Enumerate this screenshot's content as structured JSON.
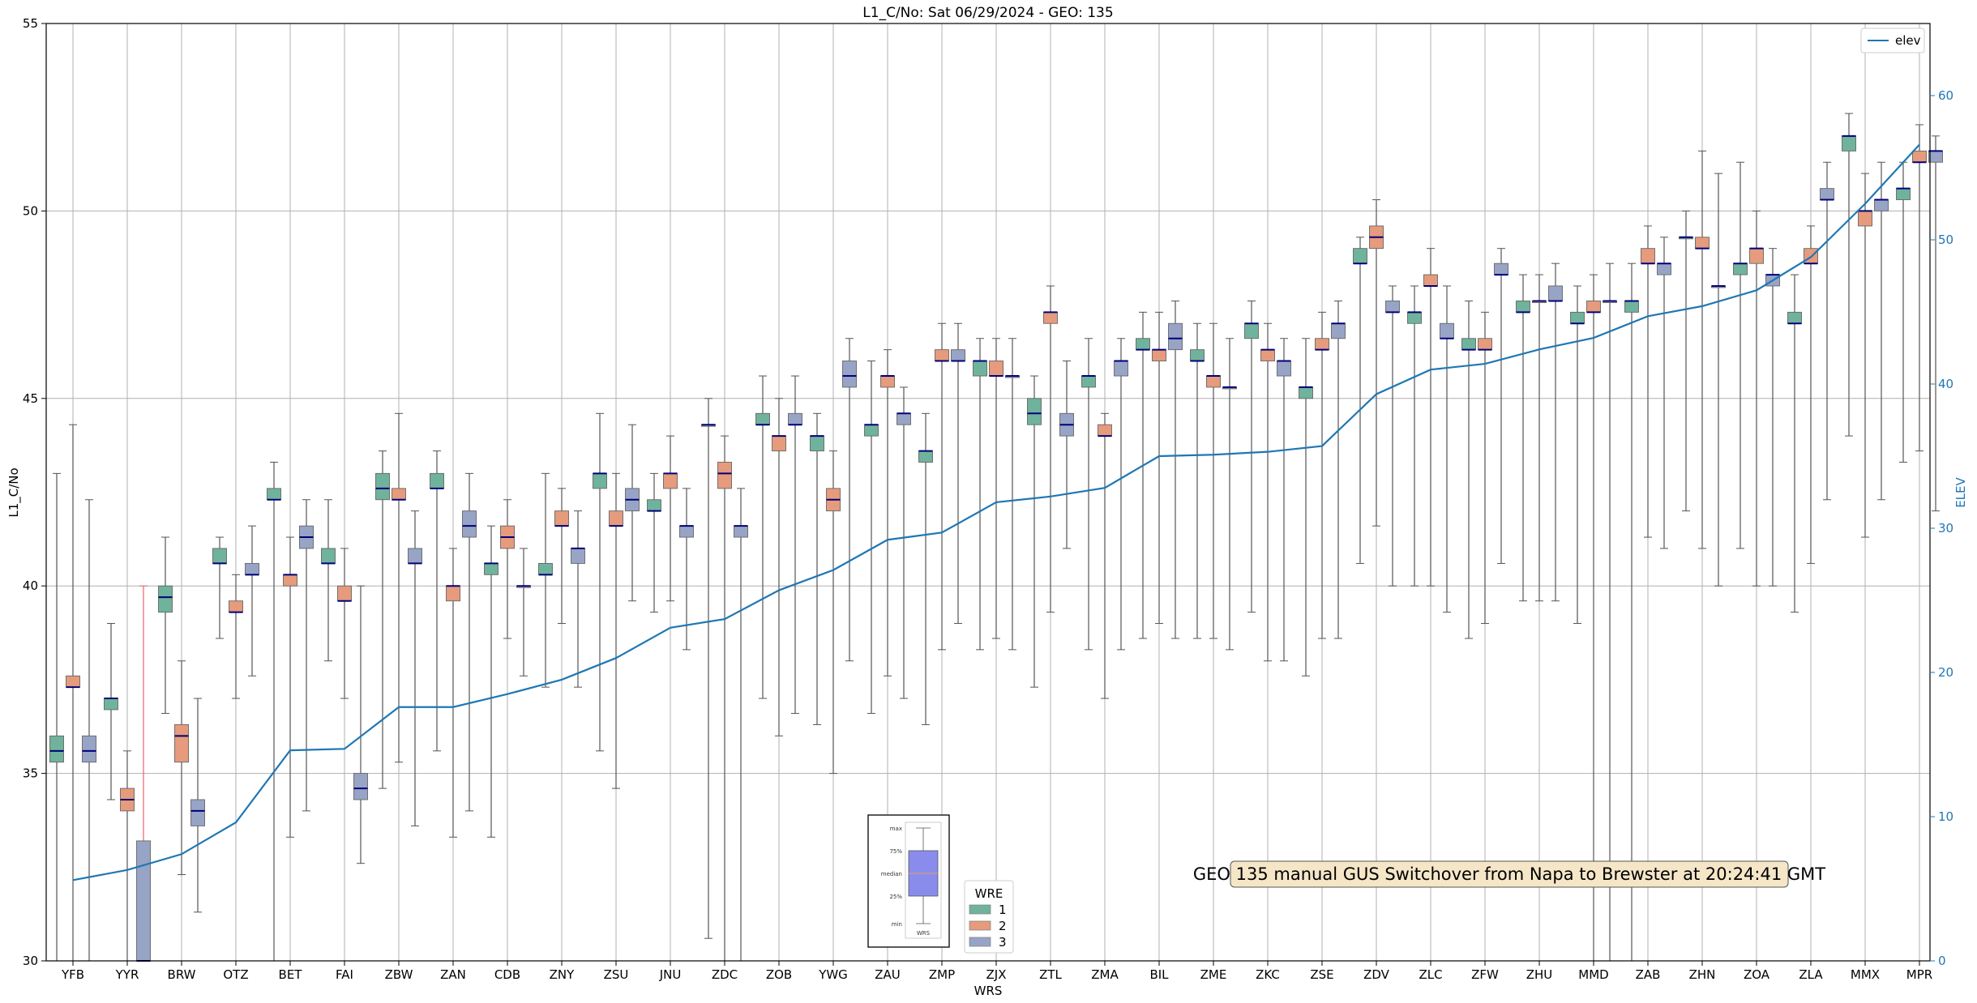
{
  "chart_data": {
    "type": "box",
    "title": "L1_C/No: Sat 06/29/2024 - GEO: 135",
    "xlabel": "WRS",
    "ylabel": "L1_C/No",
    "y2label": "ELEV",
    "ylim": [
      30,
      55
    ],
    "y2lim": [
      0,
      65
    ],
    "yticks": [
      30,
      35,
      40,
      45,
      50,
      55
    ],
    "y2ticks": [
      0,
      10,
      20,
      30,
      40,
      50,
      60
    ],
    "grid": true,
    "categories": [
      "YFB",
      "YYR",
      "BRW",
      "OTZ",
      "BET",
      "FAI",
      "ZBW",
      "ZAN",
      "CDB",
      "ZNY",
      "ZSU",
      "JNU",
      "ZDC",
      "ZOB",
      "YWG",
      "ZAU",
      "ZMP",
      "ZJX",
      "ZTL",
      "ZMA",
      "BIL",
      "ZME",
      "ZKC",
      "ZSE",
      "ZDV",
      "ZLC",
      "ZFW",
      "ZHU",
      "MMD",
      "ZAB",
      "ZHN",
      "ZOA",
      "ZLA",
      "MMX",
      "MPR"
    ],
    "elev_series": {
      "name": "elev",
      "values": [
        5.6,
        6.3,
        7.4,
        9.6,
        14.6,
        14.7,
        17.6,
        17.6,
        18.5,
        19.5,
        21.0,
        23.1,
        23.7,
        25.7,
        27.1,
        29.2,
        29.7,
        31.8,
        32.2,
        32.8,
        35.0,
        35.1,
        35.3,
        35.7,
        39.3,
        41.0,
        41.4,
        42.4,
        43.2,
        44.7,
        45.4,
        46.5,
        48.8,
        52.5,
        56.6
      ]
    },
    "wre_colors": {
      "1": "#6fb39c",
      "2": "#e59b7c",
      "3": "#97a4c6"
    },
    "boxes": [
      {
        "station": "YFB",
        "wre": 1,
        "min": 30,
        "q1": 35.3,
        "median": 35.6,
        "q3": 36.0,
        "max": 43
      },
      {
        "station": "YFB",
        "wre": 2,
        "min": 30,
        "q1": 37.3,
        "median": 37.3,
        "q3": 37.6,
        "max": 44.3
      },
      {
        "station": "YFB",
        "wre": 3,
        "min": 30,
        "q1": 35.3,
        "median": 35.6,
        "q3": 36.0,
        "max": 42.3
      },
      {
        "station": "YYR",
        "wre": 1,
        "min": 34.3,
        "q1": 36.7,
        "median": 37.0,
        "q3": 37.0,
        "max": 39
      },
      {
        "station": "YYR",
        "wre": 2,
        "min": 30,
        "q1": 34.0,
        "median": 34.3,
        "q3": 34.6,
        "max": 35.6
      },
      {
        "station": "YYR",
        "wre": 3,
        "min": 30,
        "q1": 30.0,
        "median": 30.0,
        "q3": 33.2,
        "max": 40
      },
      {
        "station": "BRW",
        "wre": 1,
        "min": 36.6,
        "q1": 39.3,
        "median": 39.7,
        "q3": 40.0,
        "max": 41.3
      },
      {
        "station": "BRW",
        "wre": 2,
        "min": 32.3,
        "q1": 35.3,
        "median": 36.0,
        "q3": 36.3,
        "max": 38
      },
      {
        "station": "BRW",
        "wre": 3,
        "min": 31.3,
        "q1": 33.6,
        "median": 34.0,
        "q3": 34.3,
        "max": 37
      },
      {
        "station": "OTZ",
        "wre": 1,
        "min": 38.6,
        "q1": 40.6,
        "median": 40.6,
        "q3": 41.0,
        "max": 41.3
      },
      {
        "station": "OTZ",
        "wre": 2,
        "min": 37,
        "q1": 39.3,
        "median": 39.3,
        "q3": 39.6,
        "max": 40.3
      },
      {
        "station": "OTZ",
        "wre": 3,
        "min": 37.6,
        "q1": 40.3,
        "median": 40.3,
        "q3": 40.6,
        "max": 41.6
      },
      {
        "station": "BET",
        "wre": 1,
        "min": 30,
        "q1": 42.3,
        "median": 42.3,
        "q3": 42.6,
        "max": 43.3
      },
      {
        "station": "BET",
        "wre": 2,
        "min": 33.3,
        "q1": 40.0,
        "median": 40.3,
        "q3": 40.3,
        "max": 41.3
      },
      {
        "station": "BET",
        "wre": 3,
        "min": 34,
        "q1": 41.0,
        "median": 41.3,
        "q3": 41.6,
        "max": 42.3
      },
      {
        "station": "FAI",
        "wre": 1,
        "min": 38,
        "q1": 40.6,
        "median": 40.6,
        "q3": 41.0,
        "max": 42.3
      },
      {
        "station": "FAI",
        "wre": 2,
        "min": 37,
        "q1": 39.6,
        "median": 39.6,
        "q3": 40.0,
        "max": 41
      },
      {
        "station": "FAI",
        "wre": 3,
        "min": 32.6,
        "q1": 34.3,
        "median": 34.6,
        "q3": 35.0,
        "max": 40
      },
      {
        "station": "ZBW",
        "wre": 1,
        "min": 34.6,
        "q1": 42.3,
        "median": 42.6,
        "q3": 43.0,
        "max": 43.6
      },
      {
        "station": "ZBW",
        "wre": 2,
        "min": 35.3,
        "q1": 42.3,
        "median": 42.3,
        "q3": 42.6,
        "max": 44.6
      },
      {
        "station": "ZBW",
        "wre": 3,
        "min": 33.6,
        "q1": 40.6,
        "median": 40.6,
        "q3": 41.0,
        "max": 42
      },
      {
        "station": "ZAN",
        "wre": 1,
        "min": 35.6,
        "q1": 42.6,
        "median": 42.6,
        "q3": 43.0,
        "max": 43.6
      },
      {
        "station": "ZAN",
        "wre": 2,
        "min": 33.3,
        "q1": 39.6,
        "median": 40.0,
        "q3": 40.0,
        "max": 41
      },
      {
        "station": "ZAN",
        "wre": 3,
        "min": 34,
        "q1": 41.3,
        "median": 41.6,
        "q3": 42.0,
        "max": 43
      },
      {
        "station": "CDB",
        "wre": 1,
        "min": 33.3,
        "q1": 40.3,
        "median": 40.6,
        "q3": 40.6,
        "max": 41.6
      },
      {
        "station": "CDB",
        "wre": 2,
        "min": 38.6,
        "q1": 41.0,
        "median": 41.3,
        "q3": 41.6,
        "max": 42.3
      },
      {
        "station": "CDB",
        "wre": 3,
        "min": 37.6,
        "q1": 40.0,
        "median": 40.0,
        "q3": 40.0,
        "max": 41
      },
      {
        "station": "ZNY",
        "wre": 1,
        "min": 37.3,
        "q1": 40.3,
        "median": 40.3,
        "q3": 40.6,
        "max": 43
      },
      {
        "station": "ZNY",
        "wre": 2,
        "min": 39,
        "q1": 41.6,
        "median": 41.6,
        "q3": 42.0,
        "max": 42.6
      },
      {
        "station": "ZNY",
        "wre": 3,
        "min": 37.3,
        "q1": 40.6,
        "median": 41.0,
        "q3": 41.0,
        "max": 42
      },
      {
        "station": "ZSU",
        "wre": 1,
        "min": 35.6,
        "q1": 42.6,
        "median": 43.0,
        "q3": 43.0,
        "max": 44.6
      },
      {
        "station": "ZSU",
        "wre": 2,
        "min": 34.6,
        "q1": 41.6,
        "median": 41.6,
        "q3": 42.0,
        "max": 43
      },
      {
        "station": "ZSU",
        "wre": 3,
        "min": 39.6,
        "q1": 42.0,
        "median": 42.3,
        "q3": 42.6,
        "max": 44.3
      },
      {
        "station": "JNU",
        "wre": 1,
        "min": 39.3,
        "q1": 42.0,
        "median": 42.0,
        "q3": 42.3,
        "max": 43
      },
      {
        "station": "JNU",
        "wre": 2,
        "min": 39.6,
        "q1": 42.6,
        "median": 43.0,
        "q3": 43.0,
        "max": 44
      },
      {
        "station": "JNU",
        "wre": 3,
        "min": 38.3,
        "q1": 41.3,
        "median": 41.6,
        "q3": 41.6,
        "max": 42.6
      },
      {
        "station": "ZDC",
        "wre": 1,
        "min": 30.6,
        "q1": 44.3,
        "median": 44.3,
        "q3": 44.3,
        "max": 45
      },
      {
        "station": "ZDC",
        "wre": 2,
        "min": 30,
        "q1": 42.6,
        "median": 43.0,
        "q3": 43.3,
        "max": 44
      },
      {
        "station": "ZDC",
        "wre": 3,
        "min": 30,
        "q1": 41.3,
        "median": 41.6,
        "q3": 41.6,
        "max": 42.6
      },
      {
        "station": "ZOB",
        "wre": 1,
        "min": 37,
        "q1": 44.3,
        "median": 44.3,
        "q3": 44.6,
        "max": 45.6
      },
      {
        "station": "ZOB",
        "wre": 2,
        "min": 36,
        "q1": 43.6,
        "median": 44.0,
        "q3": 44.0,
        "max": 45
      },
      {
        "station": "ZOB",
        "wre": 3,
        "min": 36.6,
        "q1": 44.3,
        "median": 44.3,
        "q3": 44.6,
        "max": 45.6
      },
      {
        "station": "YWG",
        "wre": 1,
        "min": 36.3,
        "q1": 43.6,
        "median": 44.0,
        "q3": 44.0,
        "max": 44.6
      },
      {
        "station": "YWG",
        "wre": 2,
        "min": 35,
        "q1": 42.0,
        "median": 42.3,
        "q3": 42.6,
        "max": 43.6
      },
      {
        "station": "YWG",
        "wre": 3,
        "min": 38,
        "q1": 45.3,
        "median": 45.6,
        "q3": 46.0,
        "max": 46.6
      },
      {
        "station": "ZAU",
        "wre": 1,
        "min": 36.6,
        "q1": 44.0,
        "median": 44.3,
        "q3": 44.3,
        "max": 46
      },
      {
        "station": "ZAU",
        "wre": 2,
        "min": 37.6,
        "q1": 45.3,
        "median": 45.6,
        "q3": 45.6,
        "max": 46.3
      },
      {
        "station": "ZAU",
        "wre": 3,
        "min": 37,
        "q1": 44.3,
        "median": 44.6,
        "q3": 44.6,
        "max": 45.3
      },
      {
        "station": "ZMP",
        "wre": 1,
        "min": 36.3,
        "q1": 43.3,
        "median": 43.6,
        "q3": 43.6,
        "max": 44.6
      },
      {
        "station": "ZMP",
        "wre": 2,
        "min": 38.3,
        "q1": 46.0,
        "median": 46.0,
        "q3": 46.3,
        "max": 47
      },
      {
        "station": "ZMP",
        "wre": 3,
        "min": 39,
        "q1": 46.0,
        "median": 46.0,
        "q3": 46.3,
        "max": 47
      },
      {
        "station": "ZJX",
        "wre": 1,
        "min": 38.3,
        "q1": 45.6,
        "median": 46.0,
        "q3": 46.0,
        "max": 46.6
      },
      {
        "station": "ZJX",
        "wre": 2,
        "min": 38.6,
        "q1": 45.6,
        "median": 45.6,
        "q3": 46.0,
        "max": 46.6
      },
      {
        "station": "ZJX",
        "wre": 3,
        "min": 38.3,
        "q1": 45.6,
        "median": 45.6,
        "q3": 45.6,
        "max": 46.6
      },
      {
        "station": "ZTL",
        "wre": 1,
        "min": 37.3,
        "q1": 44.3,
        "median": 44.6,
        "q3": 45.0,
        "max": 45.6
      },
      {
        "station": "ZTL",
        "wre": 2,
        "min": 39.3,
        "q1": 47.0,
        "median": 47.3,
        "q3": 47.3,
        "max": 48
      },
      {
        "station": "ZTL",
        "wre": 3,
        "min": 41,
        "q1": 44.0,
        "median": 44.3,
        "q3": 44.6,
        "max": 46
      },
      {
        "station": "ZMA",
        "wre": 1,
        "min": 38.3,
        "q1": 45.3,
        "median": 45.6,
        "q3": 45.6,
        "max": 46.6
      },
      {
        "station": "ZMA",
        "wre": 2,
        "min": 37,
        "q1": 44.0,
        "median": 44.0,
        "q3": 44.3,
        "max": 44.6
      },
      {
        "station": "ZMA",
        "wre": 3,
        "min": 38.3,
        "q1": 45.6,
        "median": 46.0,
        "q3": 46.0,
        "max": 46.6
      },
      {
        "station": "BIL",
        "wre": 1,
        "min": 38.6,
        "q1": 46.3,
        "median": 46.3,
        "q3": 46.6,
        "max": 47.3
      },
      {
        "station": "BIL",
        "wre": 2,
        "min": 39,
        "q1": 46.0,
        "median": 46.3,
        "q3": 46.3,
        "max": 47.3
      },
      {
        "station": "BIL",
        "wre": 3,
        "min": 38.6,
        "q1": 46.3,
        "median": 46.6,
        "q3": 47.0,
        "max": 47.6
      },
      {
        "station": "ZME",
        "wre": 1,
        "min": 38.6,
        "q1": 46.0,
        "median": 46.0,
        "q3": 46.3,
        "max": 47
      },
      {
        "station": "ZME",
        "wre": 2,
        "min": 38.6,
        "q1": 45.3,
        "median": 45.6,
        "q3": 45.6,
        "max": 47
      },
      {
        "station": "ZME",
        "wre": 3,
        "min": 38.3,
        "q1": 45.3,
        "median": 45.3,
        "q3": 45.3,
        "max": 46.6
      },
      {
        "station": "ZKC",
        "wre": 1,
        "min": 39.3,
        "q1": 46.6,
        "median": 47.0,
        "q3": 47.0,
        "max": 47.6
      },
      {
        "station": "ZKC",
        "wre": 2,
        "min": 38,
        "q1": 46.0,
        "median": 46.3,
        "q3": 46.3,
        "max": 47
      },
      {
        "station": "ZKC",
        "wre": 3,
        "min": 38,
        "q1": 45.6,
        "median": 46.0,
        "q3": 46.0,
        "max": 46.6
      },
      {
        "station": "ZSE",
        "wre": 1,
        "min": 37.6,
        "q1": 45.0,
        "median": 45.3,
        "q3": 45.3,
        "max": 46.6
      },
      {
        "station": "ZSE",
        "wre": 2,
        "min": 38.6,
        "q1": 46.3,
        "median": 46.3,
        "q3": 46.6,
        "max": 47.3
      },
      {
        "station": "ZSE",
        "wre": 3,
        "min": 38.6,
        "q1": 46.6,
        "median": 47.0,
        "q3": 47.0,
        "max": 47.6
      },
      {
        "station": "ZDV",
        "wre": 1,
        "min": 40.6,
        "q1": 48.6,
        "median": 48.6,
        "q3": 49.0,
        "max": 49.3
      },
      {
        "station": "ZDV",
        "wre": 2,
        "min": 41.6,
        "q1": 49.0,
        "median": 49.3,
        "q3": 49.6,
        "max": 50.3
      },
      {
        "station": "ZDV",
        "wre": 3,
        "min": 40,
        "q1": 47.3,
        "median": 47.3,
        "q3": 47.6,
        "max": 48
      },
      {
        "station": "ZLC",
        "wre": 1,
        "min": 40,
        "q1": 47.0,
        "median": 47.3,
        "q3": 47.3,
        "max": 48
      },
      {
        "station": "ZLC",
        "wre": 2,
        "min": 40,
        "q1": 48.0,
        "median": 48.0,
        "q3": 48.3,
        "max": 49
      },
      {
        "station": "ZLC",
        "wre": 3,
        "min": 39.3,
        "q1": 46.6,
        "median": 46.6,
        "q3": 47.0,
        "max": 48
      },
      {
        "station": "ZFW",
        "wre": 1,
        "min": 38.6,
        "q1": 46.3,
        "median": 46.3,
        "q3": 46.6,
        "max": 47.6
      },
      {
        "station": "ZFW",
        "wre": 2,
        "min": 39,
        "q1": 46.3,
        "median": 46.3,
        "q3": 46.6,
        "max": 47.3
      },
      {
        "station": "ZFW",
        "wre": 3,
        "min": 40.6,
        "q1": 48.3,
        "median": 48.3,
        "q3": 48.6,
        "max": 49
      },
      {
        "station": "ZHU",
        "wre": 1,
        "min": 39.6,
        "q1": 47.3,
        "median": 47.3,
        "q3": 47.6,
        "max": 48.3
      },
      {
        "station": "ZHU",
        "wre": 2,
        "min": 39.6,
        "q1": 47.6,
        "median": 47.6,
        "q3": 47.6,
        "max": 48.3
      },
      {
        "station": "ZHU",
        "wre": 3,
        "min": 39.6,
        "q1": 47.6,
        "median": 47.6,
        "q3": 48.0,
        "max": 48.6
      },
      {
        "station": "MMD",
        "wre": 1,
        "min": 39,
        "q1": 47.0,
        "median": 47.0,
        "q3": 47.3,
        "max": 48
      },
      {
        "station": "MMD",
        "wre": 2,
        "min": 30,
        "q1": 47.3,
        "median": 47.3,
        "q3": 47.6,
        "max": 48.3
      },
      {
        "station": "MMD",
        "wre": 3,
        "min": 30,
        "q1": 47.6,
        "median": 47.6,
        "q3": 47.6,
        "max": 48.6
      },
      {
        "station": "ZAB",
        "wre": 1,
        "min": 30,
        "q1": 47.3,
        "median": 47.6,
        "q3": 47.6,
        "max": 48.6
      },
      {
        "station": "ZAB",
        "wre": 2,
        "min": 41.3,
        "q1": 48.6,
        "median": 48.6,
        "q3": 49.0,
        "max": 49.6
      },
      {
        "station": "ZAB",
        "wre": 3,
        "min": 41,
        "q1": 48.3,
        "median": 48.6,
        "q3": 48.6,
        "max": 49.3
      },
      {
        "station": "ZHN",
        "wre": 1,
        "min": 42,
        "q1": 49.3,
        "median": 49.3,
        "q3": 49.3,
        "max": 50
      },
      {
        "station": "ZHN",
        "wre": 2,
        "min": 41,
        "q1": 49.0,
        "median": 49.0,
        "q3": 49.3,
        "max": 51.6
      },
      {
        "station": "ZHN",
        "wre": 3,
        "min": 40,
        "q1": 48.0,
        "median": 48.0,
        "q3": 48.0,
        "max": 51
      },
      {
        "station": "ZOA",
        "wre": 1,
        "min": 41,
        "q1": 48.3,
        "median": 48.6,
        "q3": 48.6,
        "max": 51.3
      },
      {
        "station": "ZOA",
        "wre": 2,
        "min": 40,
        "q1": 48.6,
        "median": 49.0,
        "q3": 49.0,
        "max": 50
      },
      {
        "station": "ZOA",
        "wre": 3,
        "min": 40,
        "q1": 48.0,
        "median": 48.3,
        "q3": 48.3,
        "max": 49
      },
      {
        "station": "ZLA",
        "wre": 1,
        "min": 39.3,
        "q1": 47.0,
        "median": 47.0,
        "q3": 47.3,
        "max": 48.3
      },
      {
        "station": "ZLA",
        "wre": 2,
        "min": 40.6,
        "q1": 48.6,
        "median": 48.6,
        "q3": 49.0,
        "max": 49.6
      },
      {
        "station": "ZLA",
        "wre": 3,
        "min": 42.3,
        "q1": 50.3,
        "median": 50.3,
        "q3": 50.6,
        "max": 51.3
      },
      {
        "station": "MMX",
        "wre": 1,
        "min": 44,
        "q1": 51.6,
        "median": 52.0,
        "q3": 52.0,
        "max": 52.6
      },
      {
        "station": "MMX",
        "wre": 2,
        "min": 41.3,
        "q1": 49.6,
        "median": 50.0,
        "q3": 50.0,
        "max": 51
      },
      {
        "station": "MMX",
        "wre": 3,
        "min": 42.3,
        "q1": 50.0,
        "median": 50.3,
        "q3": 50.3,
        "max": 51.3
      },
      {
        "station": "MPR",
        "wre": 1,
        "min": 43.3,
        "q1": 50.3,
        "median": 50.6,
        "q3": 50.6,
        "max": 51.3
      },
      {
        "station": "MPR",
        "wre": 2,
        "min": 43.6,
        "q1": 51.3,
        "median": 51.3,
        "q3": 51.6,
        "max": 52.3
      },
      {
        "station": "MPR",
        "wre": 3,
        "min": 42,
        "q1": 51.3,
        "median": 51.6,
        "q3": 51.6,
        "max": 52
      }
    ],
    "legend_elev": {
      "entries": [
        "elev"
      ],
      "position": "top-right"
    },
    "legend_wre": {
      "title": "WRE",
      "entries": [
        "1",
        "2",
        "3"
      ],
      "position": "bottom-center"
    },
    "key_box": {
      "labels": [
        "max",
        "75%",
        "median",
        "25%",
        "min"
      ],
      "xlabel": "WRS"
    },
    "annotation": "GEO 135 manual GUS Switchover from Napa to Brewster at 20:24:41 GMT"
  }
}
